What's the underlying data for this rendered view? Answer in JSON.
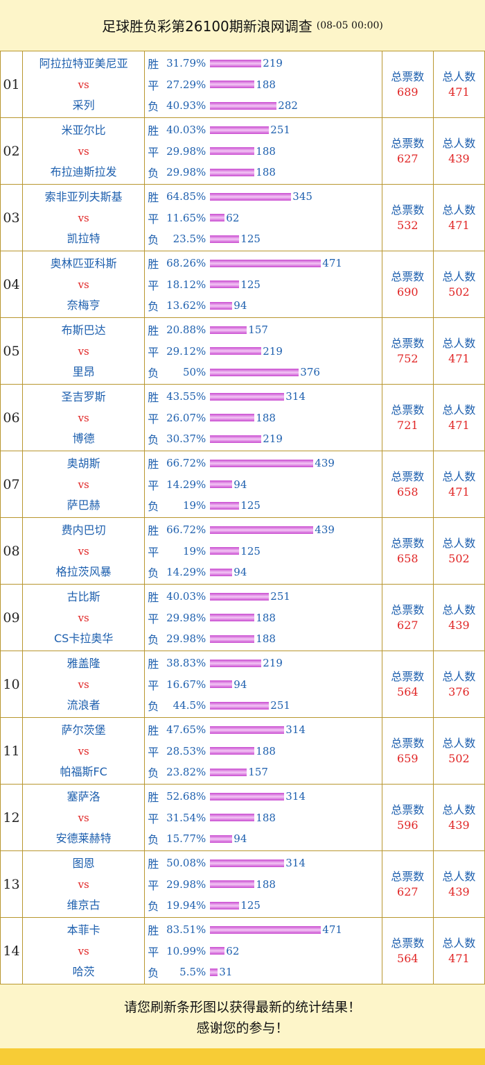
{
  "header": {
    "title": "足球胜负彩第26100期新浪网调查",
    "date": "(08-05 00:00)"
  },
  "labels": {
    "vs": "vs",
    "win": "胜",
    "draw": "平",
    "loss": "负",
    "total_votes": "总票数",
    "total_people": "总人数"
  },
  "colors": {
    "team": "#1d5fae",
    "accent_red": "#e02424",
    "bar": "#c94bd0",
    "border": "#b8962e",
    "background": "#fdf5c9",
    "bottom_strip": "#f7cc36"
  },
  "matches": [
    {
      "num": "01",
      "home": "阿拉拉特亚美尼亚",
      "away": "采列",
      "win": {
        "pct": "31.79%",
        "count": "219"
      },
      "draw": {
        "pct": "27.29%",
        "count": "188"
      },
      "loss": {
        "pct": "40.93%",
        "count": "282"
      },
      "total_votes": "689",
      "total_people": "471"
    },
    {
      "num": "02",
      "home": "米亚尔比",
      "away": "布拉迪斯拉发",
      "win": {
        "pct": "40.03%",
        "count": "251"
      },
      "draw": {
        "pct": "29.98%",
        "count": "188"
      },
      "loss": {
        "pct": "29.98%",
        "count": "188"
      },
      "total_votes": "627",
      "total_people": "439"
    },
    {
      "num": "03",
      "home": "索非亚列夫斯基",
      "away": "凯拉特",
      "win": {
        "pct": "64.85%",
        "count": "345"
      },
      "draw": {
        "pct": "11.65%",
        "count": "62"
      },
      "loss": {
        "pct": "23.5%",
        "count": "125"
      },
      "total_votes": "532",
      "total_people": "471"
    },
    {
      "num": "04",
      "home": "奥林匹亚科斯",
      "away": "奈梅亨",
      "win": {
        "pct": "68.26%",
        "count": "471"
      },
      "draw": {
        "pct": "18.12%",
        "count": "125"
      },
      "loss": {
        "pct": "13.62%",
        "count": "94"
      },
      "total_votes": "690",
      "total_people": "502"
    },
    {
      "num": "05",
      "home": "布斯巴达",
      "away": "里昂",
      "win": {
        "pct": "20.88%",
        "count": "157"
      },
      "draw": {
        "pct": "29.12%",
        "count": "219"
      },
      "loss": {
        "pct": "50%",
        "count": "376"
      },
      "total_votes": "752",
      "total_people": "471"
    },
    {
      "num": "06",
      "home": "圣吉罗斯",
      "away": "博德",
      "win": {
        "pct": "43.55%",
        "count": "314"
      },
      "draw": {
        "pct": "26.07%",
        "count": "188"
      },
      "loss": {
        "pct": "30.37%",
        "count": "219"
      },
      "total_votes": "721",
      "total_people": "471"
    },
    {
      "num": "07",
      "home": "奥胡斯",
      "away": "萨巴赫",
      "win": {
        "pct": "66.72%",
        "count": "439"
      },
      "draw": {
        "pct": "14.29%",
        "count": "94"
      },
      "loss": {
        "pct": "19%",
        "count": "125"
      },
      "total_votes": "658",
      "total_people": "471"
    },
    {
      "num": "08",
      "home": "费内巴切",
      "away": "格拉茨风暴",
      "win": {
        "pct": "66.72%",
        "count": "439"
      },
      "draw": {
        "pct": "19%",
        "count": "125"
      },
      "loss": {
        "pct": "14.29%",
        "count": "94"
      },
      "total_votes": "658",
      "total_people": "502"
    },
    {
      "num": "09",
      "home": "古比斯",
      "away": "CS卡拉奥华",
      "win": {
        "pct": "40.03%",
        "count": "251"
      },
      "draw": {
        "pct": "29.98%",
        "count": "188"
      },
      "loss": {
        "pct": "29.98%",
        "count": "188"
      },
      "total_votes": "627",
      "total_people": "439"
    },
    {
      "num": "10",
      "home": "雅盖隆",
      "away": "流浪者",
      "win": {
        "pct": "38.83%",
        "count": "219"
      },
      "draw": {
        "pct": "16.67%",
        "count": "94"
      },
      "loss": {
        "pct": "44.5%",
        "count": "251"
      },
      "total_votes": "564",
      "total_people": "376"
    },
    {
      "num": "11",
      "home": "萨尔茨堡",
      "away": "帕福斯FC",
      "win": {
        "pct": "47.65%",
        "count": "314"
      },
      "draw": {
        "pct": "28.53%",
        "count": "188"
      },
      "loss": {
        "pct": "23.82%",
        "count": "157"
      },
      "total_votes": "659",
      "total_people": "502"
    },
    {
      "num": "12",
      "home": "塞萨洛",
      "away": "安德莱赫特",
      "win": {
        "pct": "52.68%",
        "count": "314"
      },
      "draw": {
        "pct": "31.54%",
        "count": "188"
      },
      "loss": {
        "pct": "15.77%",
        "count": "94"
      },
      "total_votes": "596",
      "total_people": "439"
    },
    {
      "num": "13",
      "home": "图恩",
      "away": "维京古",
      "win": {
        "pct": "50.08%",
        "count": "314"
      },
      "draw": {
        "pct": "29.98%",
        "count": "188"
      },
      "loss": {
        "pct": "19.94%",
        "count": "125"
      },
      "total_votes": "627",
      "total_people": "439"
    },
    {
      "num": "14",
      "home": "本菲卡",
      "away": "哈茨",
      "win": {
        "pct": "83.51%",
        "count": "471"
      },
      "draw": {
        "pct": "10.99%",
        "count": "62"
      },
      "loss": {
        "pct": "5.5%",
        "count": "31"
      },
      "total_votes": "564",
      "total_people": "471"
    }
  ],
  "footer": {
    "line1": "请您刷新条形图以获得最新的统计结果！",
    "line2": "感谢您的参与！"
  }
}
